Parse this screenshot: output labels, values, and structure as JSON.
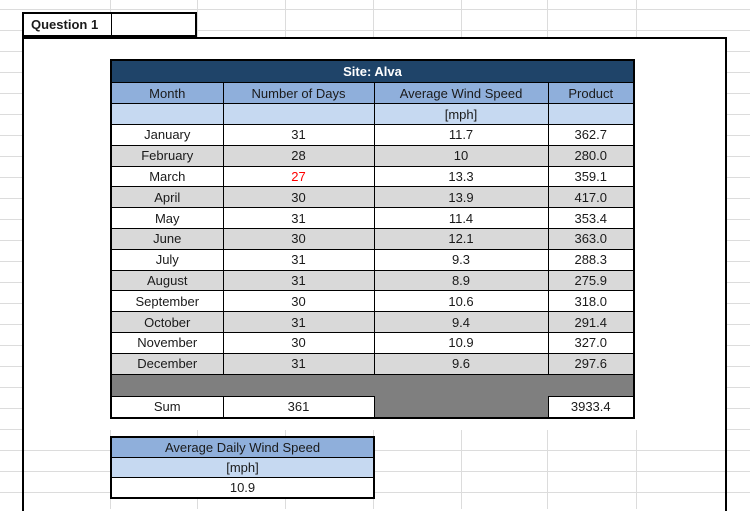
{
  "question": {
    "label": "Question 1"
  },
  "site_table": {
    "title": "Site: Alva",
    "headers": {
      "month": "Month",
      "days": "Number of Days",
      "wind": "Average Wind Speed",
      "product": "Product"
    },
    "unit": "[mph]",
    "rows": [
      {
        "month": "January",
        "days": "31",
        "wind": "11.7",
        "product": "362.7",
        "days_red": false
      },
      {
        "month": "February",
        "days": "28",
        "wind": "10",
        "product": "280.0",
        "days_red": false
      },
      {
        "month": "March",
        "days": "27",
        "wind": "13.3",
        "product": "359.1",
        "days_red": true
      },
      {
        "month": "April",
        "days": "30",
        "wind": "13.9",
        "product": "417.0",
        "days_red": false
      },
      {
        "month": "May",
        "days": "31",
        "wind": "11.4",
        "product": "353.4",
        "days_red": false
      },
      {
        "month": "June",
        "days": "30",
        "wind": "12.1",
        "product": "363.0",
        "days_red": false
      },
      {
        "month": "July",
        "days": "31",
        "wind": "9.3",
        "product": "288.3",
        "days_red": false
      },
      {
        "month": "August",
        "days": "31",
        "wind": "8.9",
        "product": "275.9",
        "days_red": false
      },
      {
        "month": "September",
        "days": "30",
        "wind": "10.6",
        "product": "318.0",
        "days_red": false
      },
      {
        "month": "October",
        "days": "31",
        "wind": "9.4",
        "product": "291.4",
        "days_red": false
      },
      {
        "month": "November",
        "days": "30",
        "wind": "10.9",
        "product": "327.0",
        "days_red": false
      },
      {
        "month": "December",
        "days": "31",
        "wind": "9.6",
        "product": "297.6",
        "days_red": false
      }
    ],
    "sum": {
      "label": "Sum",
      "days": "361",
      "product": "3933.4"
    }
  },
  "average_table": {
    "title": "Average Daily Wind Speed",
    "unit": "[mph]",
    "value": "10.9"
  },
  "colors": {
    "title_bg": "#1F4469",
    "header_bg": "#8FAFDB",
    "unit_bg": "#C6D9F1",
    "row_alt_bg": "#D9D9D9",
    "spacer_bg": "#7F7F7F",
    "red_text": "#FF0000"
  }
}
